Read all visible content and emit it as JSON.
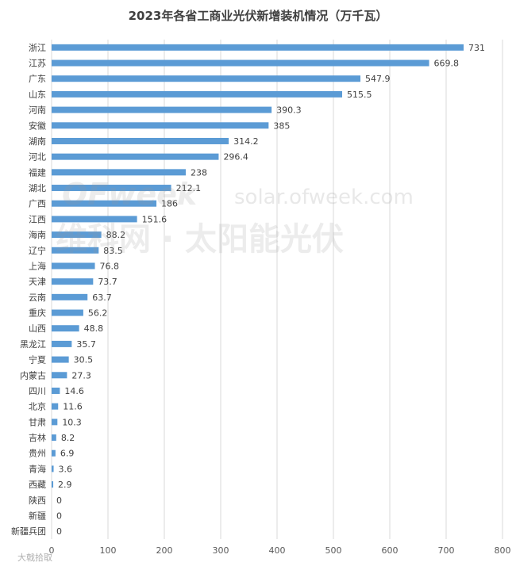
{
  "chart_data": {
    "type": "bar",
    "orientation": "horizontal",
    "title": "2023年各省工商业光伏新增装机情况（万千瓦）",
    "categories": [
      "浙江",
      "江苏",
      "广东",
      "山东",
      "河南",
      "安徽",
      "湖南",
      "河北",
      "福建",
      "湖北",
      "广西",
      "江西",
      "海南",
      "辽宁",
      "上海",
      "天津",
      "云南",
      "重庆",
      "山西",
      "黑龙江",
      "宁夏",
      "内蒙古",
      "四川",
      "北京",
      "甘肃",
      "吉林",
      "贵州",
      "青海",
      "西藏",
      "陕西",
      "新疆",
      "新疆兵团"
    ],
    "values": [
      731,
      669.8,
      547.9,
      515.5,
      390.3,
      385,
      314.2,
      296.4,
      238,
      212.1,
      186,
      151.6,
      88.2,
      83.5,
      76.8,
      73.7,
      63.7,
      56.2,
      48.8,
      35.7,
      30.5,
      27.3,
      14.6,
      11.6,
      10.3,
      8.2,
      6.9,
      3.6,
      2.9,
      0,
      0,
      0
    ],
    "value_labels": [
      "731",
      "669.8",
      "547.9",
      "515.5",
      "390.3",
      "385",
      "314.2",
      "296.4",
      "238",
      "212.1",
      "186",
      "151.6",
      "88.2",
      "83.5",
      "76.8",
      "73.7",
      "63.7",
      "56.2",
      "48.8",
      "35.7",
      "30.5",
      "27.3",
      "14.6",
      "11.6",
      "10.3",
      "8.2",
      "6.9",
      "3.6",
      "2.9",
      "0",
      "0",
      "0"
    ],
    "xlim": [
      0,
      800
    ],
    "xticks": [
      0,
      100,
      200,
      300,
      400,
      500,
      600,
      700,
      800
    ],
    "grid": true,
    "bar_color": "#5b9bd5"
  },
  "watermark": {
    "logo": "OFweek",
    "url": "solar.ofweek.com",
    "name": "维科网 · 太阳能光伏",
    "corner": "大戟拾取"
  }
}
